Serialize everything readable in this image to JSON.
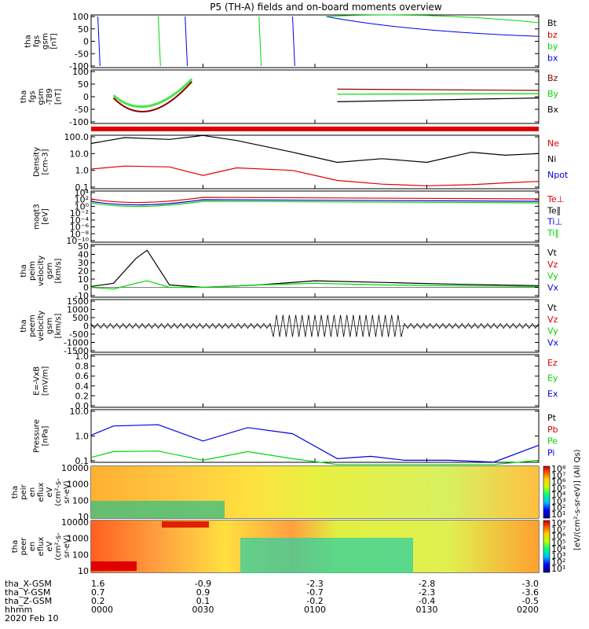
{
  "title": "P5 (TH-A) fields and on-board moments overview",
  "colors": {
    "black": "#000000",
    "red": "#e00000",
    "green": "#00d800",
    "blue": "#0000e0",
    "darkred": "#8b0000"
  },
  "panels": [
    {
      "id": "fgs",
      "ylabel": [
        "tha",
        "fgs",
        "gsm",
        "[nT]"
      ],
      "yticks": [
        "100",
        "50",
        "0",
        "-50",
        "-100"
      ],
      "legend": [
        {
          "text": "Bt",
          "color": "black"
        },
        {
          "text": "bz",
          "color": "red"
        },
        {
          "text": "by",
          "color": "green"
        },
        {
          "text": "bx",
          "color": "blue"
        }
      ]
    },
    {
      "id": "fgs2",
      "ylabel": [
        "tha",
        "fgs",
        "gsm",
        "-T89",
        "[nT]"
      ],
      "yticks": [
        "100",
        "50",
        "0",
        "-50",
        "-100"
      ],
      "legend": [
        {
          "text": "Bz",
          "color": "darkred"
        },
        {
          "text": "By",
          "color": "green"
        },
        {
          "text": "Bx",
          "color": "black"
        }
      ]
    },
    {
      "id": "density",
      "ylabel": [
        "Density",
        "[cm-3]"
      ],
      "yticks": [
        "100.0",
        "10.0",
        "1.0",
        "0.1"
      ],
      "legend": [
        {
          "text": "Ne",
          "color": "red"
        },
        {
          "text": "Ni",
          "color": "black"
        },
        {
          "text": "Npot",
          "color": "blue"
        }
      ]
    },
    {
      "id": "temp",
      "ylabel": [
        "moqt3",
        "[eV]"
      ],
      "yticks": [
        "10⁴",
        "10²",
        "10⁰",
        "10⁻²",
        "10⁻⁴",
        "10⁻⁶",
        "10⁻⁸",
        "10⁻¹⁰"
      ],
      "legend": [
        {
          "text": "Te⊥",
          "color": "red"
        },
        {
          "text": "Te∥",
          "color": "black"
        },
        {
          "text": "Ti⊥",
          "color": "blue"
        },
        {
          "text": "Ti∥",
          "color": "green"
        }
      ]
    },
    {
      "id": "peim",
      "ylabel": [
        "tha",
        "peim",
        "velocity",
        "gsm",
        "[km/s]"
      ],
      "yticks": [
        "50",
        "40",
        "30",
        "20",
        "10",
        "0",
        "-10"
      ],
      "legend": [
        {
          "text": "Vt",
          "color": "black"
        },
        {
          "text": "Vz",
          "color": "red"
        },
        {
          "text": "Vy",
          "color": "green"
        },
        {
          "text": "Vx",
          "color": "blue"
        }
      ]
    },
    {
      "id": "peem",
      "ylabel": [
        "tha",
        "peem",
        "velocity",
        "gsm",
        "[km/s]"
      ],
      "yticks": [
        "1500",
        "1000",
        "500",
        "0",
        "-500",
        "-1000",
        "-1500"
      ],
      "legend": [
        {
          "text": "Vt",
          "color": "black"
        },
        {
          "text": "Vz",
          "color": "red"
        },
        {
          "text": "Vy",
          "color": "green"
        },
        {
          "text": "Vx",
          "color": "blue"
        }
      ]
    },
    {
      "id": "efield",
      "ylabel": [
        "E=-VxB",
        "[mV/m]"
      ],
      "yticks": [
        "1.0",
        "0.8",
        "0.6",
        "0.4",
        "0.2",
        "0.0"
      ],
      "legend": [
        {
          "text": "Ez",
          "color": "red"
        },
        {
          "text": "Ey",
          "color": "green"
        },
        {
          "text": "Ex",
          "color": "blue"
        }
      ]
    },
    {
      "id": "pressure",
      "ylabel": [
        "Pressure",
        "[nPa]"
      ],
      "yticks": [
        "10.0",
        "1.0",
        "0.1"
      ],
      "legend": [
        {
          "text": "Pt",
          "color": "black"
        },
        {
          "text": "Pb",
          "color": "red"
        },
        {
          "text": "Pe",
          "color": "green"
        },
        {
          "text": "Pi",
          "color": "blue"
        }
      ]
    },
    {
      "id": "peir",
      "ylabel": [
        "tha",
        "peir",
        "en",
        "eflux",
        "eV",
        "(cm²-s-",
        "sr-eV)"
      ],
      "yticks": [
        "10000",
        "1000",
        "100",
        "10"
      ],
      "legend": []
    },
    {
      "id": "peer",
      "ylabel": [
        "tha",
        "peer",
        "en",
        "eflux",
        "eV",
        "(cm²-s-",
        "sr-eV)"
      ],
      "yticks": [
        "10000",
        "1000",
        "100",
        "10"
      ],
      "legend": []
    }
  ],
  "colorbar": {
    "ticks": [
      "10⁸",
      "10⁷",
      "10⁶",
      "10⁵",
      "10⁴",
      "10³",
      "10²",
      "10¹"
    ],
    "label": "[eV/(cm²-s-sr-eV)] (All Qs)"
  },
  "footer": {
    "rows": [
      {
        "label": "tha_X-GSM",
        "values": [
          "1.6",
          "-0.9",
          "-2.3",
          "-2.8",
          "-3.0"
        ]
      },
      {
        "label": "tha_Y-GSM",
        "values": [
          "0.7",
          "0.9",
          "-0.7",
          "-2.3",
          "-3.6"
        ]
      },
      {
        "label": "tha_Z-GSM",
        "values": [
          "0.2",
          "0.1",
          "-0.2",
          "-0.4",
          "-0.5"
        ]
      },
      {
        "label": "hhmm",
        "values": [
          "0000",
          "0030",
          "0100",
          "0130",
          "0200"
        ]
      }
    ],
    "date": "2020 Feb 10"
  },
  "chart_data": {
    "type": "line",
    "title": "P5 (TH-A) fields and on-board moments overview",
    "x_time_hhmm": [
      "0000",
      "0030",
      "0100",
      "0130",
      "0200"
    ],
    "xlim_hours": [
      0,
      2
    ],
    "density": {
      "x_hours": [
        0,
        0.15,
        0.35,
        0.5,
        0.65,
        0.9,
        1.1,
        1.3,
        1.5,
        1.7,
        1.85,
        2.0
      ],
      "series": [
        {
          "name": "Ni",
          "values": [
            40,
            90,
            70,
            120,
            60,
            12,
            3,
            5,
            3,
            12,
            8,
            10
          ]
        },
        {
          "name": "Ne",
          "values": [
            1.2,
            1.8,
            1.6,
            0.5,
            1.4,
            1,
            0.25,
            0.15,
            0.12,
            0.14,
            0.18,
            0.22
          ]
        }
      ]
    },
    "pressure": {
      "x_hours": [
        0,
        0.1,
        0.3,
        0.5,
        0.7,
        0.9,
        1.1,
        1.25,
        1.4,
        1.6,
        1.8,
        2.0
      ],
      "series": [
        {
          "name": "Pi",
          "values": [
            1,
            3,
            3.5,
            0.5,
            2.5,
            1.2,
            0.06,
            0.08,
            0.05,
            0.05,
            0.04,
            0.3
          ]
        },
        {
          "name": "Pe",
          "values": [
            0.07,
            0.14,
            0.15,
            0.05,
            0.14,
            0.06,
            0.03,
            0.03,
            0.03,
            0.03,
            0.03,
            0.05
          ]
        }
      ]
    },
    "peim_velocity": {
      "x_hours": [
        0,
        0.1,
        0.2,
        0.25,
        0.35,
        0.5,
        0.75,
        1.0,
        1.3,
        1.6,
        2.0
      ],
      "series": [
        {
          "name": "Vt",
          "values": [
            1,
            5,
            35,
            45,
            3,
            0,
            3,
            8,
            6,
            4,
            2
          ]
        },
        {
          "name": "Vy",
          "values": [
            0,
            -2,
            5,
            8,
            0,
            0,
            3,
            5,
            3,
            2,
            1
          ]
        }
      ]
    }
  }
}
